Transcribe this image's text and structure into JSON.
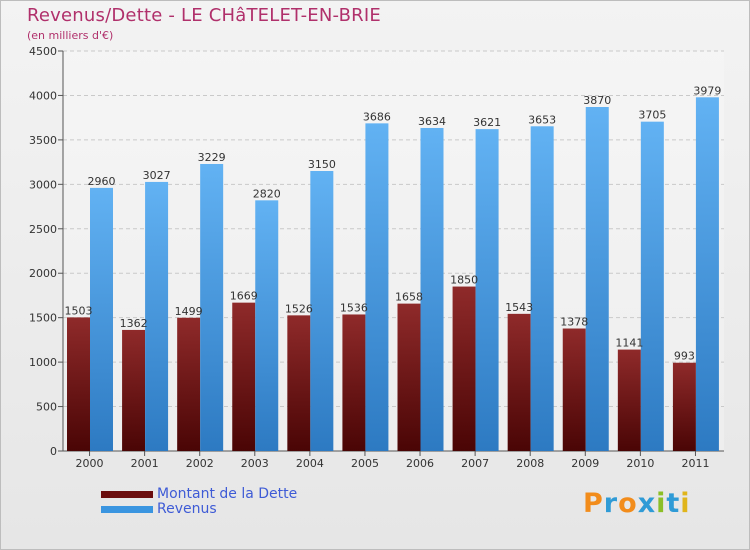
{
  "title": "Revenus/Dette - LE CHâTELET-EN-BRIE",
  "subtitle": "(en milliers d'€)",
  "logo": {
    "text": "Proxiti",
    "letters": [
      "P",
      "r",
      "o",
      "x",
      "i",
      "t",
      "i"
    ],
    "colors": [
      "#f28c1b",
      "#2f9bd6",
      "#f28c1b",
      "#2f9bd6",
      "#8cbf26",
      "#2f9bd6",
      "#e0b51b"
    ]
  },
  "legend": [
    {
      "label": "Montant de la Dette",
      "color": "#6b0d0d"
    },
    {
      "label": "Revenus",
      "color": "#3a95e0"
    }
  ],
  "chart_data": {
    "type": "bar",
    "categories": [
      "2000",
      "2001",
      "2002",
      "2003",
      "2004",
      "2005",
      "2006",
      "2007",
      "2008",
      "2009",
      "2010",
      "2011"
    ],
    "series": [
      {
        "name": "Montant de la Dette",
        "color": "#6b0d0d",
        "values": [
          1503,
          1362,
          1499,
          1669,
          1526,
          1536,
          1658,
          1850,
          1543,
          1378,
          1141,
          993
        ],
        "labels": [
          "1503",
          "1362",
          "1499",
          "1669",
          "1526",
          "1536",
          "1658",
          "1850",
          "1543",
          "1378",
          "1141",
          "993"
        ]
      },
      {
        "name": "Revenus",
        "color": "#3a95e0",
        "values": [
          2960,
          3027,
          3229,
          2820,
          3150,
          3686,
          3634,
          3621,
          3653,
          3870,
          3705,
          3979
        ],
        "labels": [
          "2960",
          "3027",
          "3229",
          "2820",
          "3150",
          "3686",
          "3634",
          "3621",
          "3653",
          "3870",
          "3705",
          "3979"
        ]
      }
    ],
    "ylim": [
      0,
      4500
    ],
    "yticks": [
      "0",
      "500",
      "1000",
      "1500",
      "2000",
      "2500",
      "3000",
      "3500",
      "4000",
      "4500"
    ],
    "grid": true,
    "legend_position": "bottom-left"
  }
}
